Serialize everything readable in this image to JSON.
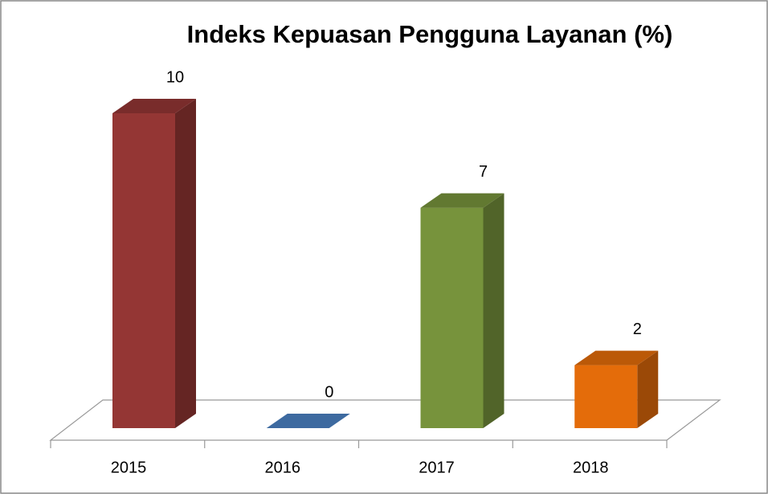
{
  "chart_data": {
    "type": "bar3d",
    "title": "Indeks Kepuasan Pengguna Layanan (%)",
    "categories": [
      "2015",
      "2016",
      "2017",
      "2018"
    ],
    "values": [
      10,
      0,
      7,
      2
    ],
    "colors": [
      "#943634",
      "#3d6aa0",
      "#77933c",
      "#e46c0a"
    ]
  }
}
